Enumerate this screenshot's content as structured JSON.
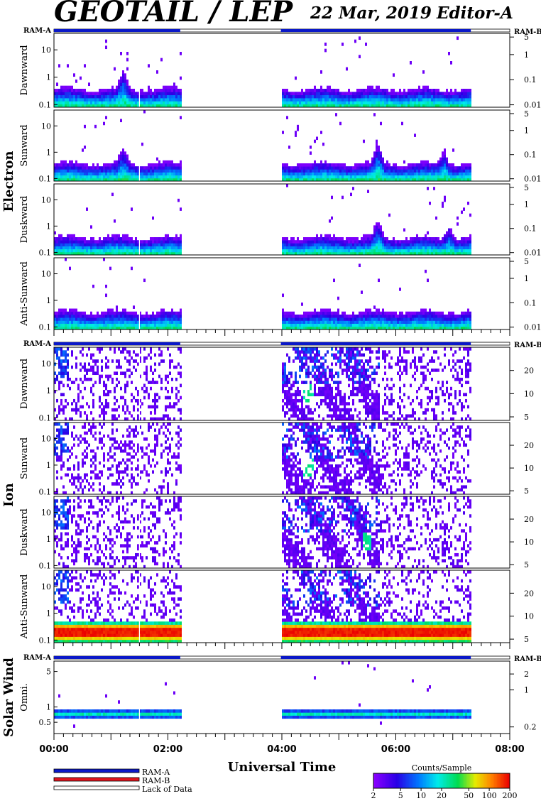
{
  "header": {
    "title": "GEOTAIL / LEP",
    "date": "22 Mar, 2019",
    "editor": "Editor-A"
  },
  "chart_data": {
    "type": "heatmap",
    "x_axis": {
      "label": "Universal Time",
      "range": [
        "00:00",
        "08:00"
      ],
      "major_ticks": [
        "00:00",
        "02:00",
        "04:00",
        "06:00",
        "08:00"
      ],
      "minor_tick_minutes": 10
    },
    "data_coverage": [
      {
        "start": "00:00",
        "end": "02:13"
      },
      {
        "start": "03:59",
        "end": "07:19"
      }
    ],
    "groups": [
      {
        "name": "Electron",
        "ram_left": "RAM-A",
        "ram_right": "RAM-B",
        "panels": [
          {
            "label": "Dawnward",
            "left_ticks": [
              "10",
              "1",
              "0.1"
            ],
            "left_range": [
              0.08,
              40
            ],
            "right_ticks": [
              "5",
              "1",
              "0.1",
              "0.01"
            ],
            "right_range": [
              0.008,
              7
            ],
            "profile": "electron",
            "events": [
              {
                "time": "01:12",
                "strength": 0.7
              }
            ]
          },
          {
            "label": "Sunward",
            "left_ticks": [
              "10",
              "1",
              "0.1"
            ],
            "left_range": [
              0.08,
              40
            ],
            "right_ticks": [
              "5",
              "1",
              "0.1",
              "0.01"
            ],
            "right_range": [
              0.008,
              7
            ],
            "profile": "electron",
            "events": [
              {
                "time": "01:12",
                "strength": 0.6
              },
              {
                "time": "05:40",
                "strength": 0.8
              },
              {
                "time": "06:50",
                "strength": 0.6
              }
            ]
          },
          {
            "label": "Duskward",
            "left_ticks": [
              "10",
              "1",
              "0.1"
            ],
            "left_range": [
              0.08,
              40
            ],
            "right_ticks": [
              "5",
              "1",
              "0.1",
              "0.01"
            ],
            "right_range": [
              0.008,
              7
            ],
            "profile": "electron",
            "events": [
              {
                "time": "05:40",
                "strength": 0.6
              },
              {
                "time": "06:55",
                "strength": 0.5
              }
            ]
          },
          {
            "label": "Anti-Sunward",
            "left_ticks": [
              "10",
              "1",
              "0.1"
            ],
            "left_range": [
              0.08,
              40
            ],
            "right_ticks": [
              "5",
              "1",
              "0.1",
              "0.01"
            ],
            "right_range": [
              0.008,
              7
            ],
            "profile": "electron",
            "events": []
          }
        ]
      },
      {
        "name": "Ion",
        "ram_left": "RAM-A",
        "ram_right": "RAM-B",
        "panels": [
          {
            "label": "Dawnward",
            "left_ticks": [
              "10",
              "1",
              "0.1"
            ],
            "left_range": [
              0.08,
              40
            ],
            "right_ticks": [
              "20",
              "10",
              "5"
            ],
            "right_range": [
              4.5,
              40
            ],
            "profile": "ion",
            "events": [
              {
                "time": "04:27",
                "strength": 0.9
              }
            ]
          },
          {
            "label": "Sunward",
            "left_ticks": [
              "10",
              "1",
              "0.1"
            ],
            "left_range": [
              0.08,
              40
            ],
            "right_ticks": [
              "20",
              "10",
              "5"
            ],
            "right_range": [
              4.5,
              40
            ],
            "profile": "ion",
            "events": [
              {
                "time": "04:27",
                "strength": 0.9
              }
            ]
          },
          {
            "label": "Duskward",
            "left_ticks": [
              "10",
              "1",
              "0.1"
            ],
            "left_range": [
              0.08,
              40
            ],
            "right_ticks": [
              "20",
              "10",
              "5"
            ],
            "right_range": [
              4.5,
              40
            ],
            "profile": "ion",
            "events": [
              {
                "time": "05:28",
                "strength": 0.8
              }
            ]
          },
          {
            "label": "Anti-Sunward",
            "left_ticks": [
              "10",
              "1",
              "0.1"
            ],
            "left_range": [
              0.08,
              40
            ],
            "right_ticks": [
              "20",
              "10",
              "5"
            ],
            "right_range": [
              4.5,
              40
            ],
            "profile": "ion-anti",
            "events": []
          }
        ]
      },
      {
        "name": "Solar Wind",
        "ram_left": "RAM-A",
        "ram_right": "RAM-B",
        "panels": [
          {
            "label": "Omni.",
            "left_ticks": [
              "5",
              "1",
              "0.5"
            ],
            "left_range": [
              0.3,
              8
            ],
            "right_ticks": [
              "2",
              "1",
              "0.2"
            ],
            "right_range": [
              0.15,
              3.5
            ],
            "profile": "solarwind",
            "events": []
          }
        ]
      }
    ],
    "colorbar": {
      "label": "Counts/Sample",
      "ticks": [
        2,
        5,
        10,
        20,
        50,
        100,
        200
      ],
      "range": [
        2,
        200
      ],
      "scale": "log"
    },
    "legend": [
      {
        "label": "RAM-A",
        "color": "#0a18c8"
      },
      {
        "label": "RAM-B",
        "color": "#e0141e"
      },
      {
        "label": "Lack of Data",
        "color": "#ffffff"
      }
    ]
  }
}
